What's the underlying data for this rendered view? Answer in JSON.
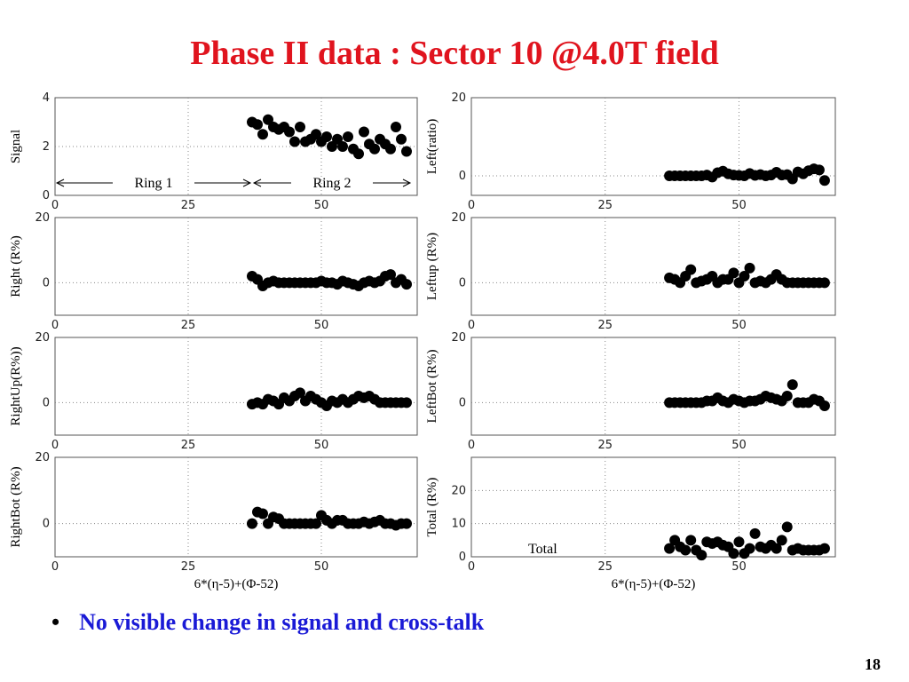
{
  "slide": {
    "title": "Phase II data : Sector 10 @4.0T field",
    "bullet": "No visible change in signal and cross-talk",
    "page_number": "18"
  },
  "chart_data": [
    {
      "type": "scatter",
      "ylabel": "Signal",
      "xlabel": "",
      "xlim": [
        0,
        68
      ],
      "ylim": [
        0,
        4
      ],
      "yticks": [
        0,
        2,
        4
      ],
      "xticks": [
        0,
        25,
        50
      ],
      "annotations": [
        {
          "text": "Ring 1",
          "from": 0,
          "to": 37
        },
        {
          "text": "Ring 2",
          "from": 37,
          "to": 67
        }
      ],
      "x": [
        37,
        38,
        39,
        40,
        41,
        42,
        43,
        44,
        45,
        46,
        47,
        48,
        49,
        50,
        51,
        52,
        53,
        54,
        55,
        56,
        57,
        58,
        59,
        60,
        61,
        62,
        63,
        64,
        65,
        66
      ],
      "y": [
        3.0,
        2.9,
        2.5,
        3.1,
        2.8,
        2.7,
        2.8,
        2.6,
        2.2,
        2.8,
        2.2,
        2.3,
        2.5,
        2.2,
        2.4,
        2.0,
        2.3,
        2.0,
        2.4,
        1.9,
        1.7,
        2.6,
        2.1,
        1.9,
        2.3,
        2.1,
        1.9,
        2.8,
        2.3,
        1.8
      ]
    },
    {
      "type": "scatter",
      "ylabel": "Left(ratio)",
      "xlabel": "",
      "xlim": [
        0,
        68
      ],
      "ylim": [
        -5,
        20
      ],
      "yticks": [
        0,
        20
      ],
      "xticks": [
        0,
        25,
        50
      ],
      "x": [
        37,
        38,
        39,
        40,
        41,
        42,
        43,
        44,
        45,
        46,
        47,
        48,
        49,
        50,
        51,
        52,
        53,
        54,
        55,
        56,
        57,
        58,
        59,
        60,
        61,
        62,
        63,
        64,
        65,
        66
      ],
      "y": [
        0,
        0,
        0,
        0,
        0,
        0,
        0,
        0.2,
        -0.3,
        0.8,
        1.2,
        0.5,
        0.2,
        0.1,
        0,
        0.6,
        0.1,
        0.3,
        0,
        0.2,
        0.9,
        0.2,
        0.3,
        -0.8,
        1.0,
        0.5,
        1.3,
        1.8,
        1.5,
        -1.2
      ]
    },
    {
      "type": "scatter",
      "ylabel": "Right (R%)",
      "xlabel": "",
      "xlim": [
        0,
        68
      ],
      "ylim": [
        -10,
        20
      ],
      "yticks": [
        0,
        20
      ],
      "xticks": [
        0,
        25,
        50
      ],
      "x": [
        37,
        38,
        39,
        40,
        41,
        42,
        43,
        44,
        45,
        46,
        47,
        48,
        49,
        50,
        51,
        52,
        53,
        54,
        55,
        56,
        57,
        58,
        59,
        60,
        61,
        62,
        63,
        64,
        65,
        66
      ],
      "y": [
        2.0,
        1.0,
        -1.0,
        0,
        0.5,
        0,
        0,
        0,
        0,
        0,
        0,
        0,
        0,
        0.5,
        0,
        0,
        -0.5,
        0.5,
        0,
        -0.5,
        -1.0,
        0,
        0.5,
        0,
        0.5,
        2.0,
        2.5,
        0,
        1.0,
        -0.5
      ]
    },
    {
      "type": "scatter",
      "ylabel": "Leftup (R%)",
      "xlabel": "",
      "xlim": [
        0,
        68
      ],
      "ylim": [
        -10,
        20
      ],
      "yticks": [
        0,
        20
      ],
      "xticks": [
        0,
        25,
        50
      ],
      "x": [
        37,
        38,
        39,
        40,
        41,
        42,
        43,
        44,
        45,
        46,
        47,
        48,
        49,
        50,
        51,
        52,
        53,
        54,
        55,
        56,
        57,
        58,
        59,
        60,
        61,
        62,
        63,
        64,
        65,
        66
      ],
      "y": [
        1.5,
        1.0,
        0,
        2.0,
        4.0,
        0,
        0.5,
        1.0,
        2.0,
        0,
        1.0,
        1.0,
        3.0,
        0,
        2.0,
        4.5,
        0,
        0.5,
        0,
        1.0,
        2.5,
        1.0,
        0,
        0,
        0,
        0,
        0,
        0,
        0,
        0
      ]
    },
    {
      "type": "scatter",
      "ylabel": "RightUp(R%))",
      "xlabel": "",
      "xlim": [
        0,
        68
      ],
      "ylim": [
        -10,
        20
      ],
      "yticks": [
        0,
        20
      ],
      "xticks": [
        0,
        25,
        50
      ],
      "x": [
        37,
        38,
        39,
        40,
        41,
        42,
        43,
        44,
        45,
        46,
        47,
        48,
        49,
        50,
        51,
        52,
        53,
        54,
        55,
        56,
        57,
        58,
        59,
        60,
        61,
        62,
        63,
        64,
        65,
        66
      ],
      "y": [
        -0.5,
        0,
        -0.5,
        1.0,
        0.5,
        -0.5,
        1.5,
        0.5,
        2.0,
        3.0,
        0.5,
        2.0,
        1.0,
        0,
        -1.0,
        0.5,
        0,
        1.0,
        0,
        1.0,
        2.0,
        1.5,
        2.0,
        1.0,
        0,
        0,
        0,
        0,
        0,
        0
      ]
    },
    {
      "type": "scatter",
      "ylabel": "LeftBot (R%)",
      "xlabel": "",
      "xlim": [
        0,
        68
      ],
      "ylim": [
        -10,
        20
      ],
      "yticks": [
        0,
        20
      ],
      "xticks": [
        0,
        25,
        50
      ],
      "x": [
        37,
        38,
        39,
        40,
        41,
        42,
        43,
        44,
        45,
        46,
        47,
        48,
        49,
        50,
        51,
        52,
        53,
        54,
        55,
        56,
        57,
        58,
        59,
        60,
        61,
        62,
        63,
        64,
        65,
        66
      ],
      "y": [
        0,
        0,
        0,
        0,
        0,
        0,
        0,
        0.5,
        0.5,
        1.5,
        0.5,
        0,
        1.0,
        0.5,
        0,
        0.5,
        0.5,
        1.0,
        2.0,
        1.5,
        1.0,
        0.5,
        2.0,
        5.5,
        0,
        0,
        0,
        1.0,
        0.5,
        -1.0
      ]
    },
    {
      "type": "scatter",
      "ylabel": "RightBot (R%)",
      "xlabel": "6*(η-5)+(Φ-52)",
      "xlim": [
        0,
        68
      ],
      "ylim": [
        -10,
        20
      ],
      "yticks": [
        0,
        20
      ],
      "xticks": [
        0,
        25,
        50
      ],
      "x": [
        37,
        38,
        39,
        40,
        41,
        42,
        43,
        44,
        45,
        46,
        47,
        48,
        49,
        50,
        51,
        52,
        53,
        54,
        55,
        56,
        57,
        58,
        59,
        60,
        61,
        62,
        63,
        64,
        65,
        66
      ],
      "y": [
        0,
        3.5,
        3.0,
        0,
        2.0,
        1.5,
        0,
        0,
        0,
        0,
        0,
        0,
        0,
        2.5,
        1.0,
        0,
        1.0,
        1.0,
        0,
        0,
        0,
        0.5,
        0,
        0.5,
        1.0,
        0,
        0,
        -0.5,
        0,
        0
      ]
    },
    {
      "type": "scatter",
      "ylabel": "Total (R%)",
      "xlabel": "6*(η-5)+(Φ-52)",
      "xlim": [
        0,
        68
      ],
      "ylim": [
        0,
        30
      ],
      "yticks": [
        0,
        10,
        20
      ],
      "xticks": [
        0,
        25,
        50
      ],
      "annotations": [
        {
          "text": "Total"
        }
      ],
      "x": [
        37,
        38,
        39,
        40,
        41,
        42,
        43,
        44,
        45,
        46,
        47,
        48,
        49,
        50,
        51,
        52,
        53,
        54,
        55,
        56,
        57,
        58,
        59,
        60,
        61,
        62,
        63,
        64,
        65,
        66
      ],
      "y": [
        2.5,
        5.0,
        3.0,
        2.0,
        5.0,
        2.0,
        0.5,
        4.5,
        4.0,
        4.5,
        3.5,
        3.0,
        1.0,
        4.5,
        1.0,
        2.5,
        7.0,
        3.0,
        2.5,
        3.5,
        2.5,
        5.0,
        9.0,
        2.0,
        2.5,
        2.0,
        2.0,
        2.0,
        2.0,
        2.5
      ]
    }
  ]
}
